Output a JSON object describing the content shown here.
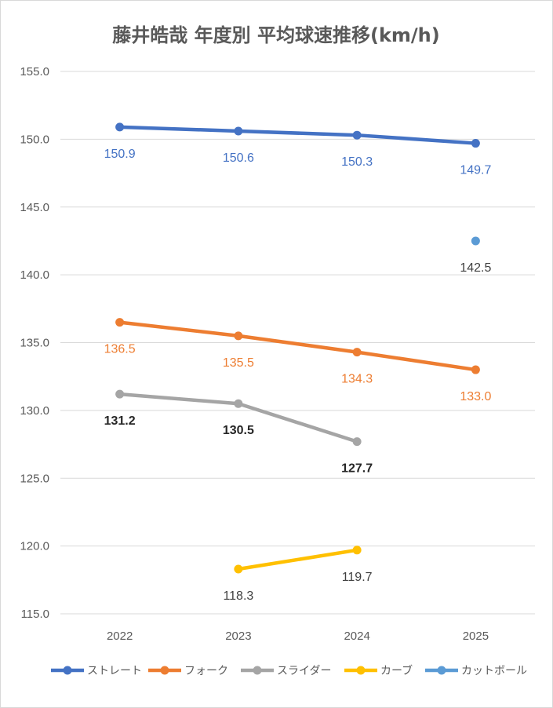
{
  "chart_data": {
    "type": "line",
    "title": "藤井皓哉 年度別 平均球速推移(km/h)",
    "categories": [
      "2022",
      "2023",
      "2024",
      "2025"
    ],
    "ylim": [
      115.0,
      155.0
    ],
    "yticks": [
      "115.0",
      "120.0",
      "125.0",
      "130.0",
      "135.0",
      "140.0",
      "145.0",
      "150.0",
      "155.0"
    ],
    "grid": true,
    "legend_position": "bottom",
    "series": [
      {
        "name": "ストレート",
        "color": "#4472c4",
        "label_color": "#4472c4",
        "label_weight": "normal",
        "values": [
          150.9,
          150.6,
          150.3,
          149.7
        ],
        "labels": [
          "150.9",
          "150.6",
          "150.3",
          "149.7"
        ]
      },
      {
        "name": "フォーク",
        "color": "#ed7d31",
        "label_color": "#ed7d31",
        "label_weight": "normal",
        "values": [
          136.5,
          135.5,
          134.3,
          133.0
        ],
        "labels": [
          "136.5",
          "135.5",
          "134.3",
          "133.0"
        ]
      },
      {
        "name": "スライダー",
        "color": "#a5a5a5",
        "label_color": "#262626",
        "label_weight": "bold",
        "values": [
          131.2,
          130.5,
          127.7,
          null
        ],
        "labels": [
          "131.2",
          "130.5",
          "127.7",
          ""
        ]
      },
      {
        "name": "カーブ",
        "color": "#ffc000",
        "label_color": "#404040",
        "label_weight": "normal",
        "values": [
          null,
          118.3,
          119.7,
          null
        ],
        "labels": [
          "",
          "118.3",
          "119.7",
          ""
        ]
      },
      {
        "name": "カットボール",
        "color": "#5b9bd5",
        "label_color": "#404040",
        "label_weight": "normal",
        "values": [
          null,
          null,
          null,
          142.5
        ],
        "labels": [
          "",
          "",
          "",
          "142.5"
        ]
      }
    ]
  }
}
